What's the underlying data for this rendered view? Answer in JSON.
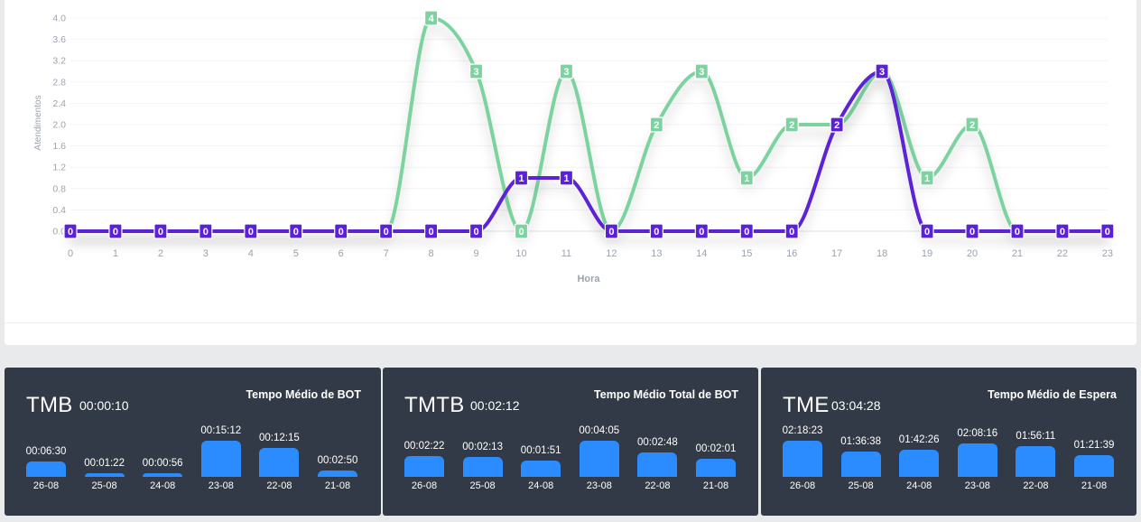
{
  "chart_data": {
    "type": "line",
    "xlabel": "Hora",
    "ylabel": "Atendimentos",
    "x": [
      "0",
      "1",
      "2",
      "3",
      "4",
      "5",
      "6",
      "7",
      "8",
      "9",
      "10",
      "11",
      "12",
      "13",
      "14",
      "15",
      "16",
      "17",
      "18",
      "19",
      "20",
      "21",
      "22",
      "23"
    ],
    "y_ticks": [
      "0.0",
      "0.4",
      "0.8",
      "1.2",
      "1.6",
      "2.0",
      "2.4",
      "2.8",
      "3.2",
      "3.6",
      "4.0"
    ],
    "ylim": [
      0,
      4
    ],
    "grid": true,
    "series": [
      {
        "color": "#7dd3a0",
        "values": [
          0,
          0,
          0,
          0,
          0,
          0,
          0,
          0,
          4,
          3,
          0,
          3,
          0,
          2,
          3,
          1,
          2,
          2,
          3,
          1,
          2,
          0,
          0,
          0
        ]
      },
      {
        "color": "#5b21d6",
        "values": [
          0,
          0,
          0,
          0,
          0,
          0,
          0,
          0,
          0,
          0,
          1,
          1,
          0,
          0,
          0,
          0,
          0,
          2,
          3,
          0,
          0,
          0,
          0,
          0
        ]
      }
    ]
  },
  "cards": [
    {
      "abbr": "TMB",
      "avg": "00:00:10",
      "full": "Tempo Médio de BOT",
      "bars": [
        {
          "label": "26-08",
          "value": "00:06:30",
          "seconds": 390
        },
        {
          "label": "25-08",
          "value": "00:01:22",
          "seconds": 82
        },
        {
          "label": "24-08",
          "value": "00:00:56",
          "seconds": 56
        },
        {
          "label": "23-08",
          "value": "00:15:12",
          "seconds": 912
        },
        {
          "label": "22-08",
          "value": "00:12:15",
          "seconds": 735
        },
        {
          "label": "21-08",
          "value": "00:02:50",
          "seconds": 170
        }
      ]
    },
    {
      "abbr": "TMTB",
      "avg": "00:02:12",
      "full": "Tempo Médio Total de BOT",
      "bars": [
        {
          "label": "26-08",
          "value": "00:02:22",
          "seconds": 142
        },
        {
          "label": "25-08",
          "value": "00:02:13",
          "seconds": 133
        },
        {
          "label": "24-08",
          "value": "00:01:51",
          "seconds": 111
        },
        {
          "label": "23-08",
          "value": "00:04:05",
          "seconds": 245
        },
        {
          "label": "22-08",
          "value": "00:02:48",
          "seconds": 168
        },
        {
          "label": "21-08",
          "value": "00:02:01",
          "seconds": 121
        }
      ]
    },
    {
      "abbr": "TME",
      "avg": "03:04:28",
      "full": "Tempo Médio de Espera",
      "bars": [
        {
          "label": "26-08",
          "value": "02:18:23",
          "seconds": 8303
        },
        {
          "label": "25-08",
          "value": "01:36:38",
          "seconds": 5798
        },
        {
          "label": "24-08",
          "value": "01:42:26",
          "seconds": 6146
        },
        {
          "label": "23-08",
          "value": "02:08:16",
          "seconds": 7696
        },
        {
          "label": "22-08",
          "value": "01:56:11",
          "seconds": 6971
        },
        {
          "label": "21-08",
          "value": "01:21:39",
          "seconds": 4899
        }
      ]
    }
  ]
}
